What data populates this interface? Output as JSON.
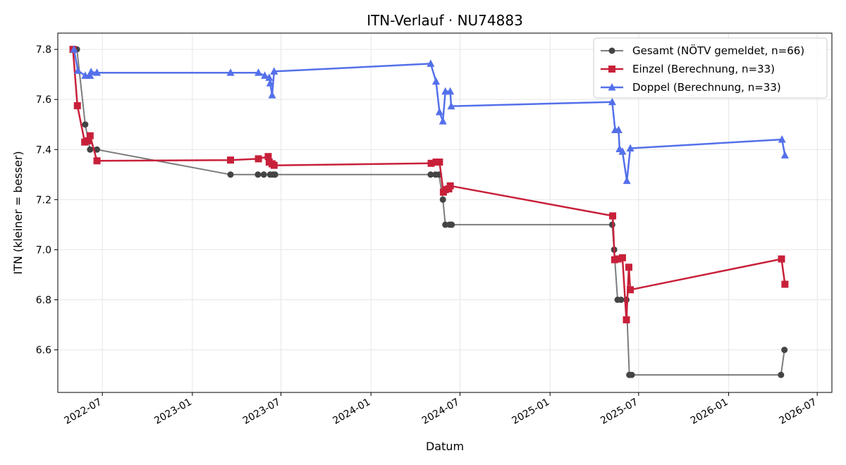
{
  "chart_data": {
    "type": "line",
    "title": "ITN-Verlauf · NU74883",
    "xlabel": "Datum",
    "ylabel": "ITN  (kleiner = besser)",
    "xlim": [
      "2022-04-01",
      "2026-07-31"
    ],
    "ylim": [
      6.43,
      7.865
    ],
    "x_ticks": [
      "2022-07",
      "2023-01",
      "2023-07",
      "2024-01",
      "2024-07",
      "2025-01",
      "2025-07",
      "2026-01",
      "2026-07"
    ],
    "y_ticks": [
      6.6,
      6.8,
      7.0,
      7.2,
      7.4,
      7.6,
      7.8
    ],
    "grid": true,
    "legend_position": "top-right",
    "series": [
      {
        "name": "Gesamt (NÖTV gemeldet, n=66)",
        "color": "#444444",
        "marker": "circle",
        "points": [
          [
            "2022-05-06",
            7.8
          ],
          [
            "2022-05-10",
            7.8
          ],
          [
            "2022-05-27",
            7.5
          ],
          [
            "2022-06-06",
            7.4
          ],
          [
            "2022-06-20",
            7.4
          ],
          [
            "2023-03-20",
            7.3
          ],
          [
            "2023-05-15",
            7.3
          ],
          [
            "2023-05-27",
            7.3
          ],
          [
            "2023-06-09",
            7.3
          ],
          [
            "2023-06-15",
            7.3
          ],
          [
            "2023-06-19",
            7.3
          ],
          [
            "2024-05-02",
            7.3
          ],
          [
            "2024-05-12",
            7.3
          ],
          [
            "2024-05-19",
            7.3
          ],
          [
            "2024-05-27",
            7.2
          ],
          [
            "2024-06-01",
            7.1
          ],
          [
            "2024-06-10",
            7.1
          ],
          [
            "2024-06-14",
            7.1
          ],
          [
            "2025-05-08",
            7.1
          ],
          [
            "2025-05-12",
            7.0
          ],
          [
            "2025-05-19",
            6.8
          ],
          [
            "2025-05-26",
            6.8
          ],
          [
            "2025-06-06",
            6.8
          ],
          [
            "2025-06-12",
            6.5
          ],
          [
            "2025-06-17",
            6.5
          ],
          [
            "2026-04-18",
            6.5
          ],
          [
            "2026-04-25",
            6.6
          ]
        ]
      },
      {
        "name": "Einzel (Berechnung, n=33)",
        "color": "#c8203a",
        "marker": "square",
        "points": [
          [
            "2022-05-02",
            7.8
          ],
          [
            "2022-05-11",
            7.575
          ],
          [
            "2022-05-26",
            7.43
          ],
          [
            "2022-06-02",
            7.435
          ],
          [
            "2022-06-06",
            7.455
          ],
          [
            "2022-06-20",
            7.355
          ],
          [
            "2023-03-20",
            7.358
          ],
          [
            "2023-05-16",
            7.363
          ],
          [
            "2023-06-05",
            7.372
          ],
          [
            "2023-06-07",
            7.35
          ],
          [
            "2023-06-13",
            7.343
          ],
          [
            "2023-06-17",
            7.337
          ],
          [
            "2024-05-03",
            7.345
          ],
          [
            "2024-05-13",
            7.35
          ],
          [
            "2024-05-20",
            7.35
          ],
          [
            "2024-05-28",
            7.23
          ],
          [
            "2024-06-01",
            7.24
          ],
          [
            "2024-06-08",
            7.243
          ],
          [
            "2024-06-11",
            7.255
          ],
          [
            "2025-05-09",
            7.135
          ],
          [
            "2025-05-13",
            6.96
          ],
          [
            "2025-05-20",
            6.963
          ],
          [
            "2025-05-29",
            6.968
          ],
          [
            "2025-06-06",
            6.72
          ],
          [
            "2025-06-11",
            6.93
          ],
          [
            "2025-06-14",
            6.84
          ],
          [
            "2026-04-19",
            6.963
          ],
          [
            "2026-04-26",
            6.862
          ]
        ]
      },
      {
        "name": "Doppel (Berechnung, n=33)",
        "color": "#5470ea",
        "marker": "triangle",
        "points": [
          [
            "2022-05-04",
            7.8
          ],
          [
            "2022-05-12",
            7.715
          ],
          [
            "2022-05-27",
            7.695
          ],
          [
            "2022-06-06",
            7.695
          ],
          [
            "2022-06-08",
            7.71
          ],
          [
            "2022-06-20",
            7.707
          ],
          [
            "2023-03-20",
            7.707
          ],
          [
            "2023-05-16",
            7.707
          ],
          [
            "2023-05-29",
            7.695
          ],
          [
            "2023-06-07",
            7.687
          ],
          [
            "2023-06-09",
            7.665
          ],
          [
            "2023-06-13",
            7.617
          ],
          [
            "2023-06-17",
            7.712
          ],
          [
            "2024-05-02",
            7.743
          ],
          [
            "2024-05-13",
            7.672
          ],
          [
            "2024-05-20",
            7.55
          ],
          [
            "2024-05-27",
            7.513
          ],
          [
            "2024-06-01",
            7.632
          ],
          [
            "2024-06-11",
            7.632
          ],
          [
            "2024-06-13",
            7.573
          ],
          [
            "2025-05-08",
            7.59
          ],
          [
            "2025-05-14",
            7.478
          ],
          [
            "2025-05-21",
            7.478
          ],
          [
            "2025-05-23",
            7.402
          ],
          [
            "2025-05-29",
            7.392
          ],
          [
            "2025-06-07",
            7.275
          ],
          [
            "2025-06-14",
            7.405
          ],
          [
            "2026-04-20",
            7.44
          ],
          [
            "2026-04-26",
            7.377
          ]
        ]
      }
    ]
  }
}
